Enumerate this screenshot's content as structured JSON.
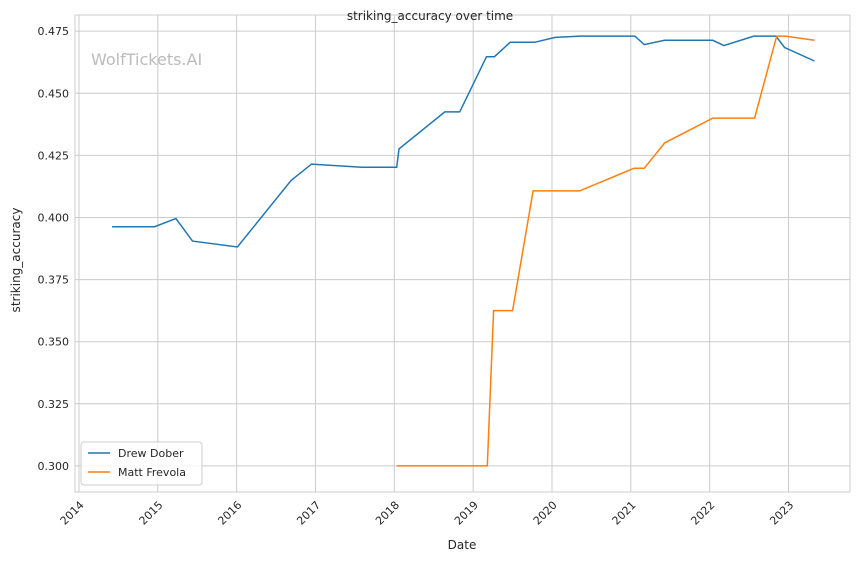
{
  "chart_data": {
    "type": "line",
    "title": "striking_accuracy over time",
    "xlabel": "Date",
    "ylabel": "striking_accuracy",
    "xlim": [
      2013.95,
      2023.78
    ],
    "ylim": [
      0.2895,
      0.4815
    ],
    "xticks": [
      2014,
      2015,
      2016,
      2017,
      2018,
      2019,
      2020,
      2021,
      2022,
      2023
    ],
    "xtick_labels": [
      "2014",
      "2015",
      "2016",
      "2017",
      "2018",
      "2019",
      "2020",
      "2021",
      "2022",
      "2023"
    ],
    "yticks": [
      0.3,
      0.325,
      0.35,
      0.375,
      0.4,
      0.425,
      0.45,
      0.475
    ],
    "ytick_labels": [
      "0.300",
      "0.325",
      "0.350",
      "0.375",
      "0.400",
      "0.425",
      "0.450",
      "0.475"
    ],
    "grid": true,
    "legend_position": "bottom-left",
    "watermark": "WolfTickets.AI",
    "series": [
      {
        "name": "Drew Dober",
        "color": "#1f77b4",
        "x": [
          2014.42,
          2014.96,
          2015.23,
          2015.44,
          2016.01,
          2016.69,
          2016.95,
          2017.59,
          2018.03,
          2018.06,
          2018.64,
          2018.83,
          2019.17,
          2019.27,
          2019.47,
          2019.78,
          2020.04,
          2020.36,
          2021.05,
          2021.17,
          2021.43,
          2022.04,
          2022.18,
          2022.56,
          2022.84,
          2022.95,
          2023.33
        ],
        "y": [
          0.3963,
          0.3963,
          0.3996,
          0.3905,
          0.3881,
          0.4149,
          0.4215,
          0.4202,
          0.4202,
          0.4276,
          0.4425,
          0.4425,
          0.4647,
          0.4647,
          0.4705,
          0.4705,
          0.4725,
          0.473,
          0.473,
          0.4696,
          0.4713,
          0.4713,
          0.4692,
          0.473,
          0.473,
          0.4684,
          0.463
        ]
      },
      {
        "name": "Matt Frevola",
        "color": "#ff7f0e",
        "x": [
          2018.03,
          2019.18,
          2019.26,
          2019.5,
          2019.76,
          2020.35,
          2021.04,
          2021.17,
          2021.43,
          2022.04,
          2022.57,
          2022.85,
          2022.96,
          2023.33
        ],
        "y": [
          0.3,
          0.3,
          0.3625,
          0.3625,
          0.4107,
          0.4107,
          0.4198,
          0.4198,
          0.43,
          0.44,
          0.44,
          0.473,
          0.473,
          0.4713
        ]
      }
    ]
  }
}
